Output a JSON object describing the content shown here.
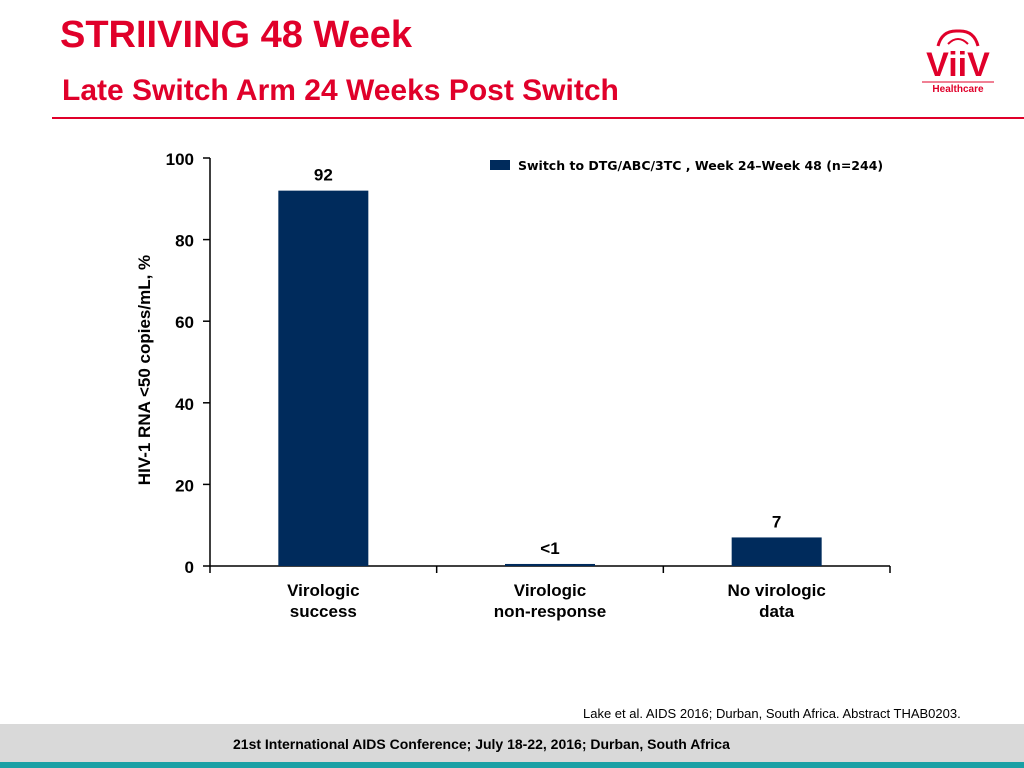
{
  "header": {
    "title": "STRIIVING 48 Week",
    "subtitle": "Late Switch Arm 24 Weeks Post Switch"
  },
  "logo": {
    "text": "ViiV",
    "subtext": "Healthcare",
    "color": "#e0002a"
  },
  "chart_data": {
    "type": "bar",
    "categories": [
      "Virologic success",
      "Virologic non-response",
      "No virologic data"
    ],
    "category_lines": [
      [
        "Virologic",
        "success"
      ],
      [
        "Virologic",
        "non-response"
      ],
      [
        "No virologic",
        "data"
      ]
    ],
    "series": [
      {
        "name": "Switch to DTG/ABC/3TC , Week 24–Week 48 (n=244)",
        "values": [
          92,
          0.5,
          7
        ],
        "labels": [
          "92",
          "<1",
          "7"
        ],
        "color": "#002b5c"
      }
    ],
    "ylabel": "HIV-1 RNA <50 copies/mL, %",
    "ylim": [
      0,
      100
    ],
    "yticks": [
      0,
      20,
      40,
      60,
      80,
      100
    ],
    "grid": false,
    "legend_position": "top-right"
  },
  "citation": "Lake et al. AIDS 2016; Durban, South Africa. Abstract THAB0203.",
  "footer": {
    "text": "21st International AIDS Conference; July 18-22, 2016; Durban, South Africa",
    "band_color": "#d9d9d9",
    "stripe_color": "#1aa0a5"
  }
}
